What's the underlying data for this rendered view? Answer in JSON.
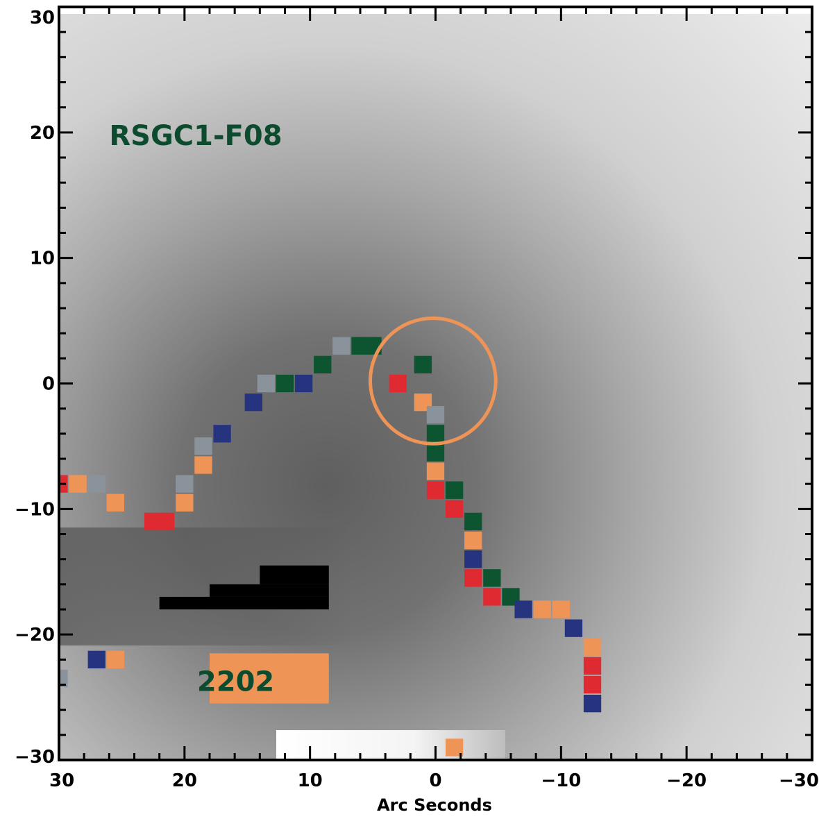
{
  "chart_data": {
    "type": "heatmap",
    "title": "",
    "xlabel": "Arc Seconds",
    "ylabel": "",
    "xlim": [
      30,
      -30
    ],
    "ylim": [
      -30,
      30
    ],
    "x_ticks": [
      30,
      20,
      10,
      0,
      -10,
      -20,
      -30
    ],
    "x_tick_labels": [
      "30",
      "20",
      "10",
      "0",
      "−10",
      "−20",
      "−30"
    ],
    "y_ticks": [
      30,
      20,
      10,
      0,
      -10,
      -20,
      -30
    ],
    "y_tick_labels": [
      "30",
      "20",
      "10",
      "0",
      "−10",
      "−20",
      "−30"
    ],
    "colormap": "grayscale",
    "annotations": [
      {
        "text": "RSGC1-F08",
        "x": 26,
        "y": 19,
        "color": "#0d4b2f"
      },
      {
        "text": "2202",
        "x": 19,
        "y": -24.5,
        "color": "#0d4b2f"
      }
    ],
    "aperture_circle": {
      "x": 0.2,
      "y": 0.2,
      "r": 5,
      "color": "#ee9457"
    },
    "marker_colors": {
      "red": "#df2a32",
      "orange": "#ee9457",
      "green": "#0d5530",
      "navy": "#263480",
      "gray": "#8a939b"
    },
    "markers": [
      {
        "x": 30,
        "y": -8,
        "c": "red"
      },
      {
        "x": 28.5,
        "y": -8,
        "c": "orange"
      },
      {
        "x": 27,
        "y": -8,
        "c": "gray"
      },
      {
        "x": 25.5,
        "y": -9.5,
        "c": "orange"
      },
      {
        "x": 22.5,
        "y": -11,
        "c": "red"
      },
      {
        "x": 21.5,
        "y": -11,
        "c": "red"
      },
      {
        "x": 20,
        "y": -9.5,
        "c": "orange"
      },
      {
        "x": 20,
        "y": -8,
        "c": "gray"
      },
      {
        "x": 18.5,
        "y": -6.5,
        "c": "orange"
      },
      {
        "x": 18.5,
        "y": -5,
        "c": "gray"
      },
      {
        "x": 17,
        "y": -4,
        "c": "navy"
      },
      {
        "x": 14.5,
        "y": -1.5,
        "c": "navy"
      },
      {
        "x": 13.5,
        "y": 0,
        "c": "gray"
      },
      {
        "x": 12,
        "y": 0,
        "c": "green"
      },
      {
        "x": 10.5,
        "y": 0,
        "c": "navy"
      },
      {
        "x": 9,
        "y": 1.5,
        "c": "green"
      },
      {
        "x": 7.5,
        "y": 3,
        "c": "gray"
      },
      {
        "x": 6,
        "y": 3,
        "c": "green"
      },
      {
        "x": 5,
        "y": 3,
        "c": "green"
      },
      {
        "x": 1,
        "y": 1.5,
        "c": "green"
      },
      {
        "x": 3,
        "y": 0,
        "c": "red"
      },
      {
        "x": 1,
        "y": -1.5,
        "c": "orange"
      },
      {
        "x": 0,
        "y": -2.5,
        "c": "gray"
      },
      {
        "x": 0,
        "y": -4,
        "c": "green"
      },
      {
        "x": 0,
        "y": -5.5,
        "c": "green"
      },
      {
        "x": 0,
        "y": -7,
        "c": "orange"
      },
      {
        "x": 0,
        "y": -8.5,
        "c": "red"
      },
      {
        "x": -1.5,
        "y": -8.5,
        "c": "green"
      },
      {
        "x": -1.5,
        "y": -10,
        "c": "red"
      },
      {
        "x": -3,
        "y": -11,
        "c": "green"
      },
      {
        "x": -3,
        "y": -12.5,
        "c": "orange"
      },
      {
        "x": -3,
        "y": -14,
        "c": "navy"
      },
      {
        "x": -3,
        "y": -15.5,
        "c": "red"
      },
      {
        "x": -4.5,
        "y": -15.5,
        "c": "green"
      },
      {
        "x": -4.5,
        "y": -17,
        "c": "red"
      },
      {
        "x": -6,
        "y": -17,
        "c": "green"
      },
      {
        "x": -7,
        "y": -18,
        "c": "navy"
      },
      {
        "x": -8.5,
        "y": -18,
        "c": "orange"
      },
      {
        "x": -10,
        "y": -18,
        "c": "orange"
      },
      {
        "x": -11,
        "y": -19.5,
        "c": "navy"
      },
      {
        "x": -12.5,
        "y": -21,
        "c": "orange"
      },
      {
        "x": -12.5,
        "y": -22.5,
        "c": "red"
      },
      {
        "x": -12.5,
        "y": -24,
        "c": "red"
      },
      {
        "x": -12.5,
        "y": -25.5,
        "c": "navy"
      },
      {
        "x": 27,
        "y": -22,
        "c": "navy"
      },
      {
        "x": 25.5,
        "y": -22,
        "c": "orange"
      },
      {
        "x": 30,
        "y": -23.5,
        "c": "gray"
      },
      {
        "x": -1.5,
        "y": -29,
        "c": "orange"
      }
    ],
    "image_regions": [
      {
        "name": "black-block-1",
        "x0": 22,
        "x1": 8.5,
        "y0": -18,
        "y1": -17,
        "fill": "#000000"
      },
      {
        "name": "black-block-2",
        "x0": 18,
        "x1": 8.5,
        "y0": -17,
        "y1": -16,
        "fill": "#000000"
      },
      {
        "name": "black-block-3",
        "x0": 14,
        "x1": 8.5,
        "y0": -16,
        "y1": -14.5,
        "fill": "#000000"
      },
      {
        "name": "orange-region",
        "x0": 18,
        "x1": 8.5,
        "y0": -25.5,
        "y1": -21.5,
        "fill": "#ee9457"
      }
    ]
  }
}
